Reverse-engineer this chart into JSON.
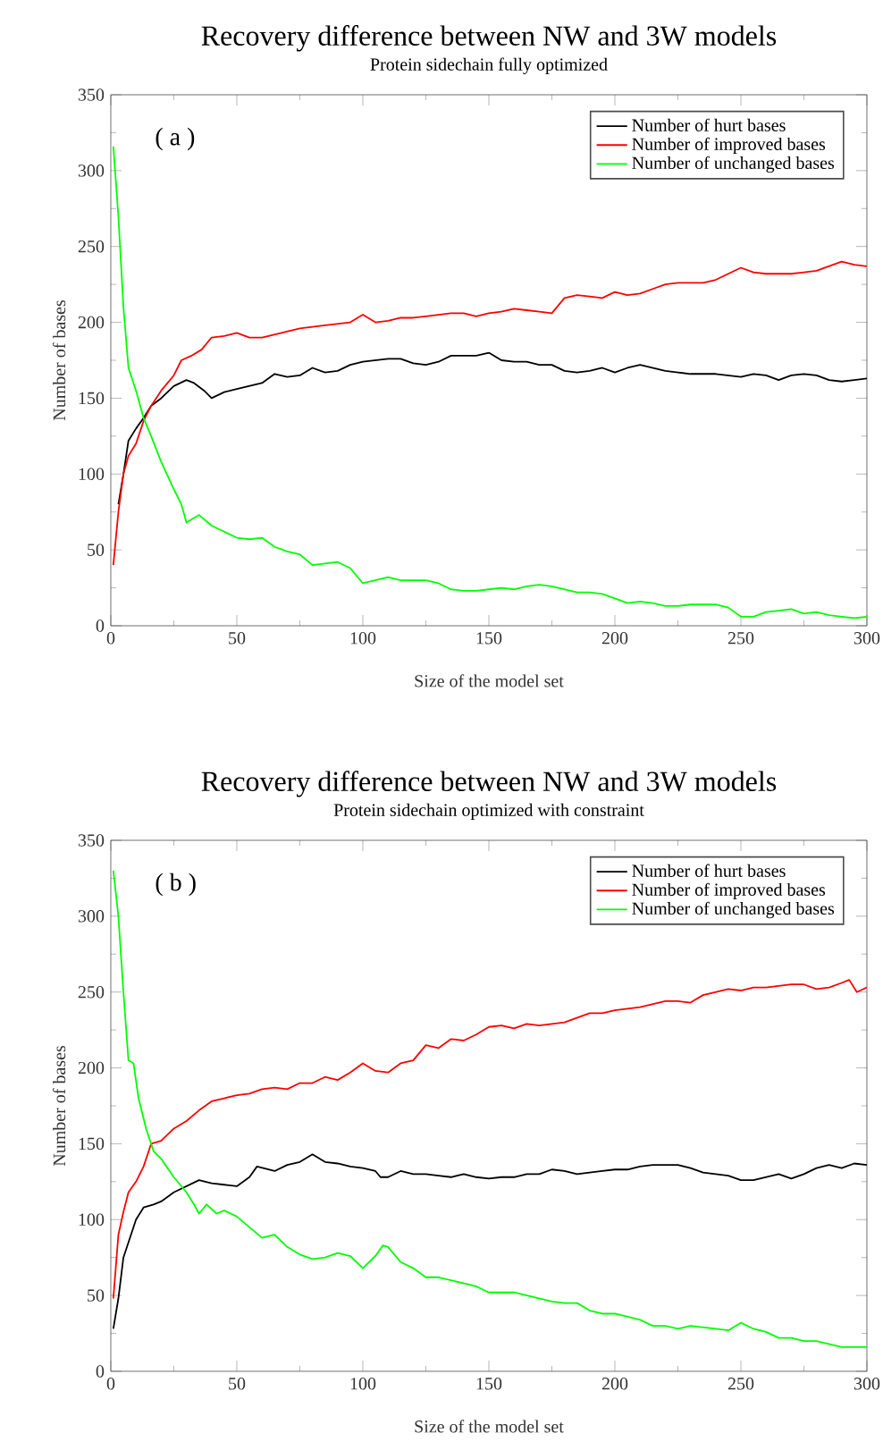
{
  "chart_data": [
    {
      "type": "line",
      "title": "Recovery difference between NW and 3W models",
      "subtitle": "Protein sidechain fully optimized",
      "xlabel": "Size of the model set",
      "ylabel": "Number of bases",
      "annotations": [
        "( a )"
      ],
      "legend": "top right",
      "xlim": [
        0,
        300
      ],
      "ylim": [
        0,
        350
      ],
      "xticks": [
        0,
        50,
        100,
        150,
        200,
        250,
        300
      ],
      "yticks": [
        0,
        50,
        100,
        150,
        200,
        250,
        300,
        350
      ],
      "series": [
        {
          "name": "Number of hurt bases",
          "color": "#000000",
          "x": [
            3,
            5,
            7,
            10,
            13,
            16,
            20,
            25,
            30,
            33,
            37,
            40,
            45,
            50,
            55,
            60,
            65,
            70,
            75,
            80,
            85,
            90,
            95,
            100,
            110,
            115,
            120,
            125,
            130,
            135,
            140,
            145,
            150,
            155,
            160,
            165,
            170,
            175,
            180,
            185,
            190,
            195,
            200,
            205,
            210,
            215,
            220,
            225,
            230,
            240,
            250,
            255,
            260,
            265,
            270,
            275,
            280,
            285,
            290,
            295,
            300
          ],
          "values": [
            80,
            100,
            122,
            130,
            137,
            145,
            150,
            158,
            162,
            160,
            155,
            150,
            154,
            156,
            158,
            160,
            166,
            164,
            165,
            170,
            167,
            168,
            172,
            174,
            176,
            176,
            173,
            172,
            174,
            178,
            178,
            178,
            180,
            175,
            174,
            174,
            172,
            172,
            168,
            167,
            168,
            170,
            167,
            170,
            172,
            170,
            168,
            167,
            166,
            166,
            164,
            166,
            165,
            162,
            165,
            166,
            165,
            162,
            161,
            162,
            163
          ]
        },
        {
          "name": "Number of improved bases",
          "color": "#ff0000",
          "x": [
            1,
            3,
            5,
            7,
            10,
            13,
            16,
            20,
            25,
            28,
            32,
            36,
            40,
            45,
            50,
            55,
            60,
            65,
            70,
            75,
            80,
            85,
            90,
            95,
            100,
            105,
            110,
            115,
            120,
            125,
            130,
            135,
            140,
            145,
            150,
            155,
            160,
            165,
            170,
            175,
            180,
            185,
            190,
            195,
            200,
            205,
            210,
            215,
            220,
            225,
            230,
            235,
            240,
            245,
            250,
            255,
            260,
            265,
            270,
            275,
            280,
            285,
            290,
            295,
            300
          ],
          "values": [
            40,
            75,
            100,
            112,
            120,
            135,
            145,
            155,
            165,
            175,
            178,
            182,
            190,
            191,
            193,
            190,
            190,
            192,
            194,
            196,
            197,
            198,
            199,
            200,
            205,
            200,
            201,
            203,
            203,
            204,
            205,
            206,
            206,
            204,
            206,
            207,
            209,
            208,
            207,
            206,
            216,
            218,
            217,
            216,
            220,
            218,
            219,
            222,
            225,
            226,
            226,
            226,
            228,
            232,
            236,
            233,
            232,
            232,
            232,
            233,
            234,
            237,
            240,
            238,
            237
          ]
        },
        {
          "name": "Number of unchanged bases",
          "color": "#00ff00",
          "x": [
            1,
            3,
            5,
            7,
            10,
            13,
            16,
            20,
            25,
            28,
            30,
            35,
            40,
            45,
            50,
            55,
            60,
            65,
            70,
            75,
            80,
            85,
            90,
            95,
            100,
            105,
            110,
            115,
            120,
            125,
            130,
            135,
            140,
            145,
            150,
            155,
            160,
            165,
            170,
            175,
            180,
            185,
            190,
            195,
            200,
            205,
            210,
            215,
            220,
            225,
            230,
            235,
            240,
            245,
            250,
            255,
            260,
            265,
            270,
            275,
            280,
            285,
            290,
            295,
            300
          ],
          "values": [
            316,
            270,
            210,
            170,
            155,
            137,
            125,
            108,
            90,
            80,
            68,
            73,
            66,
            62,
            58,
            57,
            58,
            52,
            49,
            47,
            40,
            41,
            42,
            38,
            28,
            30,
            32,
            30,
            30,
            30,
            28,
            24,
            23,
            23,
            24,
            25,
            24,
            26,
            27,
            26,
            24,
            22,
            22,
            21,
            18,
            15,
            16,
            15,
            13,
            13,
            14,
            14,
            14,
            12,
            6,
            6,
            9,
            10,
            11,
            8,
            9,
            7,
            6,
            5,
            6
          ]
        }
      ]
    },
    {
      "type": "line",
      "title": "Recovery difference between NW and 3W models",
      "subtitle": "Protein sidechain optimized with constraint",
      "xlabel": "Size of the model set",
      "ylabel": "Number of bases",
      "annotations": [
        "( b )"
      ],
      "legend": "top right",
      "xlim": [
        0,
        300
      ],
      "ylim": [
        0,
        350
      ],
      "xticks": [
        0,
        50,
        100,
        150,
        200,
        250,
        300
      ],
      "yticks": [
        0,
        50,
        100,
        150,
        200,
        250,
        300,
        350
      ],
      "series": [
        {
          "name": "Number of hurt bases",
          "color": "#000000",
          "x": [
            1,
            3,
            5,
            8,
            10,
            13,
            17,
            20,
            25,
            30,
            35,
            40,
            45,
            50,
            55,
            58,
            65,
            70,
            75,
            80,
            85,
            90,
            95,
            100,
            105,
            107,
            110,
            115,
            120,
            125,
            130,
            135,
            140,
            145,
            150,
            155,
            160,
            165,
            170,
            175,
            180,
            185,
            190,
            195,
            200,
            205,
            210,
            215,
            220,
            225,
            230,
            235,
            240,
            245,
            250,
            255,
            260,
            265,
            270,
            275,
            280,
            285,
            290,
            295,
            300
          ],
          "values": [
            28,
            48,
            75,
            90,
            100,
            108,
            110,
            112,
            118,
            122,
            126,
            124,
            123,
            122,
            128,
            135,
            132,
            136,
            138,
            143,
            138,
            137,
            135,
            134,
            132,
            128,
            128,
            132,
            130,
            130,
            129,
            128,
            130,
            128,
            127,
            128,
            128,
            130,
            130,
            133,
            132,
            130,
            131,
            132,
            133,
            133,
            135,
            136,
            136,
            136,
            134,
            131,
            130,
            129,
            126,
            126,
            128,
            130,
            127,
            130,
            134,
            136,
            134,
            137,
            136
          ]
        },
        {
          "name": "Number of improved bases",
          "color": "#ff0000",
          "x": [
            1,
            3,
            5,
            7,
            10,
            13,
            16,
            20,
            25,
            30,
            35,
            40,
            45,
            50,
            55,
            60,
            65,
            70,
            75,
            80,
            85,
            90,
            95,
            100,
            105,
            110,
            115,
            120,
            125,
            130,
            135,
            140,
            145,
            150,
            155,
            160,
            165,
            170,
            175,
            180,
            185,
            190,
            195,
            200,
            205,
            210,
            215,
            220,
            225,
            230,
            235,
            240,
            245,
            250,
            255,
            260,
            265,
            270,
            275,
            280,
            285,
            290,
            293,
            296,
            300
          ],
          "values": [
            48,
            90,
            105,
            118,
            125,
            135,
            150,
            152,
            160,
            165,
            172,
            178,
            180,
            182,
            183,
            186,
            187,
            186,
            190,
            190,
            194,
            192,
            197,
            203,
            198,
            197,
            203,
            205,
            215,
            213,
            219,
            218,
            222,
            227,
            228,
            226,
            229,
            228,
            229,
            230,
            233,
            236,
            236,
            238,
            239,
            240,
            242,
            244,
            244,
            243,
            248,
            250,
            252,
            251,
            253,
            253,
            254,
            255,
            255,
            252,
            253,
            256,
            258,
            250,
            253
          ]
        },
        {
          "name": "Number of unchanged bases",
          "color": "#00ff00",
          "x": [
            1,
            3,
            5,
            7,
            9,
            11,
            14,
            17,
            20,
            25,
            30,
            33,
            35,
            38,
            42,
            45,
            50,
            55,
            60,
            65,
            70,
            75,
            80,
            85,
            90,
            95,
            100,
            105,
            108,
            110,
            115,
            120,
            125,
            130,
            135,
            140,
            145,
            150,
            155,
            160,
            165,
            170,
            175,
            180,
            185,
            190,
            195,
            200,
            205,
            210,
            215,
            220,
            225,
            230,
            235,
            240,
            245,
            250,
            255,
            260,
            265,
            270,
            275,
            280,
            285,
            290,
            295,
            300
          ],
          "values": [
            330,
            300,
            250,
            205,
            203,
            180,
            160,
            145,
            140,
            128,
            118,
            110,
            104,
            110,
            104,
            106,
            102,
            95,
            88,
            90,
            82,
            77,
            74,
            75,
            78,
            76,
            68,
            76,
            83,
            82,
            72,
            68,
            62,
            62,
            60,
            58,
            56,
            52,
            52,
            52,
            50,
            48,
            46,
            45,
            45,
            40,
            38,
            38,
            36,
            34,
            30,
            30,
            28,
            30,
            29,
            28,
            27,
            32,
            28,
            26,
            22,
            22,
            20,
            20,
            18,
            16,
            16,
            16
          ]
        }
      ]
    }
  ]
}
